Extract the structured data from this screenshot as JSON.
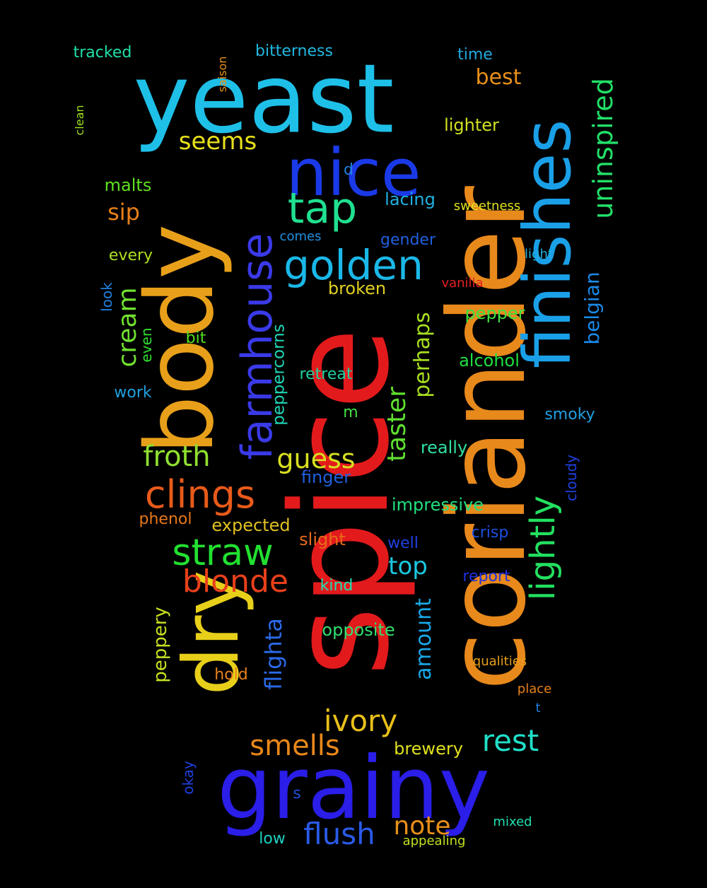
{
  "background": "#000000",
  "words": [
    {
      "text": "spice",
      "color": "#e31a1c",
      "vertical": true
    },
    {
      "text": "coriander",
      "color": "#e8891c",
      "vertical": true
    },
    {
      "text": "yeast",
      "color": "#1ec0e8",
      "vertical": false
    },
    {
      "text": "grainy",
      "color": "#2a1ee8",
      "vertical": false
    },
    {
      "text": "body",
      "color": "#e8a01a",
      "vertical": true
    },
    {
      "text": "dry",
      "color": "#e8d01a",
      "vertical": true
    },
    {
      "text": "finishes",
      "color": "#1aa0e8",
      "vertical": true
    },
    {
      "text": "nice",
      "color": "#1a3ae8",
      "vertical": false
    },
    {
      "text": "farmhouse",
      "color": "#3a3ae8",
      "vertical": true
    },
    {
      "text": "lightly",
      "color": "#22e060",
      "vertical": true
    },
    {
      "text": "golden",
      "color": "#1ab8e8",
      "vertical": false
    },
    {
      "text": "tap",
      "color": "#20e090",
      "vertical": false
    },
    {
      "text": "clings",
      "color": "#e85a1a",
      "vertical": false
    },
    {
      "text": "straw",
      "color": "#22e030",
      "vertical": false
    },
    {
      "text": "blonde",
      "color": "#e8401a",
      "vertical": false
    },
    {
      "text": "uninspired",
      "color": "#22e068",
      "vertical": true
    },
    {
      "text": "taster",
      "color": "#60e030",
      "vertical": true
    },
    {
      "text": "cream",
      "color": "#70e030",
      "vertical": true
    },
    {
      "text": "froth",
      "color": "#90e030",
      "vertical": false
    },
    {
      "text": "guess",
      "color": "#d8e020",
      "vertical": false
    },
    {
      "text": "rest",
      "color": "#20e0c8",
      "vertical": false
    },
    {
      "text": "smells",
      "color": "#e8881a",
      "vertical": false
    },
    {
      "text": "ivory",
      "color": "#e8c01a",
      "vertical": false
    },
    {
      "text": "flush",
      "color": "#2a5ae8",
      "vertical": false
    },
    {
      "text": "note",
      "color": "#e8901a",
      "vertical": false
    },
    {
      "text": "seems",
      "color": "#e8e01a",
      "vertical": false
    },
    {
      "text": "flighta",
      "color": "#2a6ae8",
      "vertical": true
    },
    {
      "text": "amount",
      "color": "#1aa8e8",
      "vertical": true
    },
    {
      "text": "perhaps",
      "color": "#a8e020",
      "vertical": true
    },
    {
      "text": "belgian",
      "color": "#1a8ae8",
      "vertical": true
    },
    {
      "text": "top",
      "color": "#1ac8e0",
      "vertical": false
    },
    {
      "text": "sip",
      "color": "#e8801a",
      "vertical": false
    },
    {
      "text": "best",
      "color": "#e8901a",
      "vertical": false
    },
    {
      "text": "peppery",
      "color": "#c8e020",
      "vertical": true
    },
    {
      "text": "peppercorns",
      "color": "#20d8b8",
      "vertical": true
    },
    {
      "text": "impressive",
      "color": "#20e080",
      "vertical": false
    },
    {
      "text": "opposite",
      "color": "#30e070",
      "vertical": false
    },
    {
      "text": "really",
      "color": "#30e0a0",
      "vertical": false
    },
    {
      "text": "expected",
      "color": "#e0c020",
      "vertical": false
    },
    {
      "text": "broken",
      "color": "#e0d020",
      "vertical": false
    },
    {
      "text": "alcohol",
      "color": "#20e040",
      "vertical": false
    },
    {
      "text": "pepper",
      "color": "#40e040",
      "vertical": false
    },
    {
      "text": "lacing",
      "color": "#20b0e0",
      "vertical": false
    },
    {
      "text": "brewery",
      "color": "#e0e020",
      "vertical": false
    },
    {
      "text": "bitterness",
      "color": "#20b8e0",
      "vertical": false
    },
    {
      "text": "tracked",
      "color": "#20e0a8",
      "vertical": false
    },
    {
      "text": "malts",
      "color": "#60e020",
      "vertical": false
    },
    {
      "text": "lighter",
      "color": "#d0e020",
      "vertical": false
    },
    {
      "text": "time",
      "color": "#20a8e0",
      "vertical": false
    },
    {
      "text": "slight",
      "color": "#e86a1a",
      "vertical": false
    },
    {
      "text": "phenol",
      "color": "#e8781a",
      "vertical": false
    },
    {
      "text": "finger",
      "color": "#2060e0",
      "vertical": false
    },
    {
      "text": "retreat",
      "color": "#20d0a0",
      "vertical": false
    },
    {
      "text": "every",
      "color": "#b0e020",
      "vertical": false
    },
    {
      "text": "hold",
      "color": "#e8801a",
      "vertical": false
    },
    {
      "text": "well",
      "color": "#2040e0",
      "vertical": false
    },
    {
      "text": "crisp",
      "color": "#2050e0",
      "vertical": false
    },
    {
      "text": "report",
      "color": "#2030e0",
      "vertical": false
    },
    {
      "text": "kind",
      "color": "#20e0b0",
      "vertical": false
    },
    {
      "text": "smoky",
      "color": "#20a0e0",
      "vertical": false
    },
    {
      "text": "gender",
      "color": "#2060e0",
      "vertical": false
    },
    {
      "text": "work",
      "color": "#20a0e0",
      "vertical": false
    },
    {
      "text": "bit",
      "color": "#50e020",
      "vertical": false
    },
    {
      "text": "even",
      "color": "#30e030",
      "vertical": true
    },
    {
      "text": "look",
      "color": "#2080e0",
      "vertical": true
    },
    {
      "text": "cloudy",
      "color": "#2040e0",
      "vertical": true
    },
    {
      "text": "okay",
      "color": "#2040e0",
      "vertical": true
    },
    {
      "text": "low",
      "color": "#20d0c0",
      "vertical": false
    },
    {
      "text": "appealing",
      "color": "#c0e020",
      "vertical": false
    },
    {
      "text": "mixed",
      "color": "#20e0b0",
      "vertical": false
    },
    {
      "text": "qualities",
      "color": "#e8a01a",
      "vertical": false
    },
    {
      "text": "place",
      "color": "#e8801a",
      "vertical": false
    },
    {
      "text": "sweetness",
      "color": "#e0e020",
      "vertical": false
    },
    {
      "text": "comes",
      "color": "#2090e0",
      "vertical": false
    },
    {
      "text": "light",
      "color": "#20b0e0",
      "vertical": false
    },
    {
      "text": "vanilla",
      "color": "#e32020",
      "vertical": false
    },
    {
      "text": "saison",
      "color": "#e8901a",
      "vertical": true
    },
    {
      "text": "clean",
      "color": "#a0e020",
      "vertical": true
    },
    {
      "text": "d",
      "color": "#2080e0",
      "vertical": false
    },
    {
      "text": "m",
      "color": "#40e040",
      "vertical": false
    },
    {
      "text": "s",
      "color": "#2050e0",
      "vertical": false
    },
    {
      "text": "t",
      "color": "#2080e0",
      "vertical": false
    }
  ]
}
